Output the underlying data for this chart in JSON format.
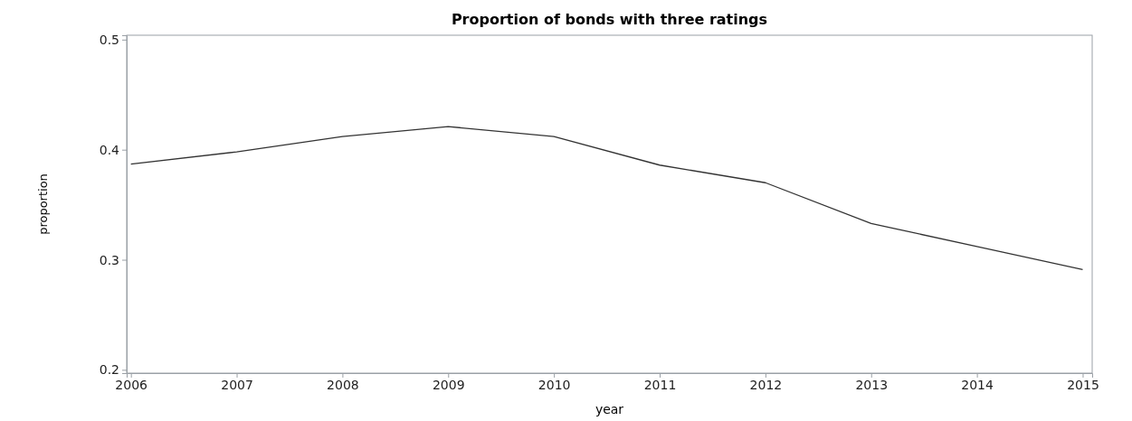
{
  "chart_data": {
    "type": "line",
    "title": "Proportion of bonds with three ratings",
    "xlabel": "year",
    "ylabel": "proportion",
    "x": [
      2006,
      2007,
      2008,
      2009,
      2010,
      2011,
      2012,
      2013,
      2014,
      2015
    ],
    "series": [
      {
        "color": "#333333",
        "values": [
          0.387,
          0.398,
          0.412,
          0.421,
          0.412,
          0.386,
          0.37,
          0.333,
          0.312,
          0.291
        ]
      }
    ],
    "xlim": [
      2005.96,
      2015.09
    ],
    "xticks": [
      2006,
      2007,
      2008,
      2009,
      2010,
      2011,
      2012,
      2013,
      2014,
      2015
    ],
    "ylim": [
      0.197,
      0.504
    ],
    "yticks": [
      0.2,
      0.3,
      0.4,
      0.5
    ],
    "grid": false,
    "marker": "none",
    "line_style": "solid"
  }
}
